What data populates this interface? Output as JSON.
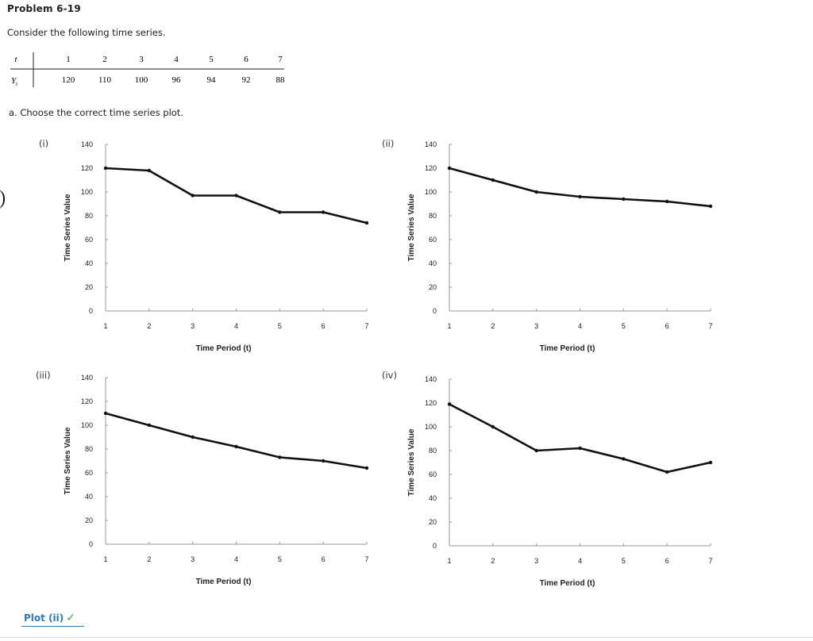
{
  "problem": {
    "title": "Problem 6-19",
    "intro": "Consider the following time series.",
    "question": "a. Choose the correct time series plot."
  },
  "table": {
    "t_label": "t",
    "y_label": "Y",
    "y_sub": "t",
    "t_values": [
      "1",
      "2",
      "3",
      "4",
      "5",
      "6",
      "7"
    ],
    "y_values": [
      "120",
      "110",
      "100",
      "96",
      "94",
      "92",
      "88"
    ]
  },
  "answer": {
    "text": "Plot (ii)",
    "check": "✓"
  },
  "chart_data": [
    {
      "id": "i",
      "label": "(i)",
      "type": "line",
      "x": [
        1,
        2,
        3,
        4,
        5,
        6,
        7
      ],
      "y": [
        120,
        118,
        97,
        97,
        83,
        83,
        74
      ],
      "xlabel": "Time Period (t)",
      "ylabel": "Time Series Value",
      "ylim": [
        0,
        140
      ],
      "yticks": [
        "0",
        "20",
        "40",
        "60",
        "80",
        "100",
        "120",
        "140"
      ],
      "xticks": [
        "1",
        "2",
        "3",
        "4",
        "5",
        "6",
        "7"
      ]
    },
    {
      "id": "ii",
      "label": "(ii)",
      "type": "line",
      "x": [
        1,
        2,
        3,
        4,
        5,
        6,
        7
      ],
      "y": [
        120,
        110,
        100,
        96,
        94,
        92,
        88
      ],
      "xlabel": "Time Period (t)",
      "ylabel": "Time Series Value",
      "ylim": [
        0,
        140
      ],
      "yticks": [
        "0",
        "20",
        "40",
        "60",
        "80",
        "100",
        "120",
        "140"
      ],
      "xticks": [
        "1",
        "2",
        "3",
        "4",
        "5",
        "6",
        "7"
      ]
    },
    {
      "id": "iii",
      "label": "(iii)",
      "type": "line",
      "x": [
        1,
        2,
        3,
        4,
        5,
        6,
        7
      ],
      "y": [
        110,
        100,
        90,
        82,
        73,
        70,
        64
      ],
      "xlabel": "Time Period (t)",
      "ylabel": "Time Series Value",
      "ylim": [
        0,
        140
      ],
      "yticks": [
        "0",
        "20",
        "40",
        "60",
        "80",
        "100",
        "120",
        "140"
      ],
      "xticks": [
        "1",
        "2",
        "3",
        "4",
        "5",
        "6",
        "7"
      ]
    },
    {
      "id": "iv",
      "label": "(iv)",
      "type": "line",
      "x": [
        1,
        2,
        3,
        4,
        5,
        6,
        7
      ],
      "y": [
        119,
        100,
        80,
        82,
        73,
        62,
        70
      ],
      "xlabel": "Time Period (t)",
      "ylabel": "Time Series Value",
      "ylim": [
        0,
        140
      ],
      "yticks": [
        "0",
        "20",
        "40",
        "60",
        "80",
        "100",
        "120",
        "140"
      ],
      "xticks": [
        "1",
        "2",
        "3",
        "4",
        "5",
        "6",
        "7"
      ]
    }
  ]
}
